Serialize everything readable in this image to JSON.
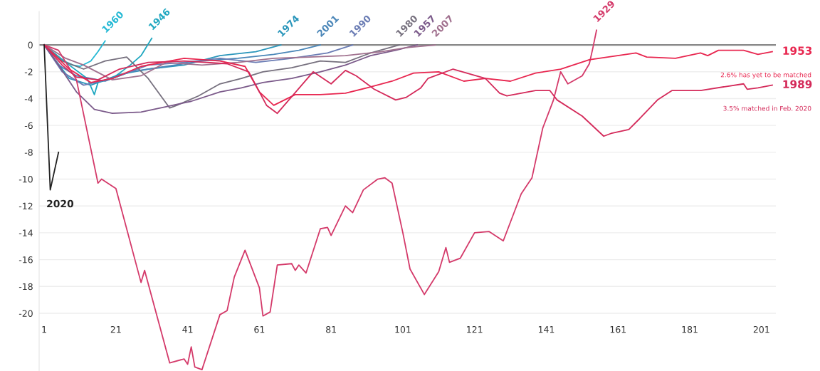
{
  "chart_data": {
    "type": "line",
    "xlim": [
      -0.4,
      205
    ],
    "ylim": [
      -24.3,
      2.5
    ],
    "xticks": [
      1,
      21,
      41,
      61,
      81,
      101,
      121,
      141,
      161,
      181,
      201
    ],
    "yticks": [
      0,
      -2,
      -4,
      -6,
      -8,
      -10,
      -12,
      -14,
      -16,
      -18,
      -20
    ],
    "grid": "y",
    "legend": false,
    "ref_lines": [
      {
        "axis": "y",
        "value": 0,
        "color": "#888888"
      }
    ],
    "annotations": [
      "2.6% has yet to be matched",
      "3.5% matched in Feb. 2020"
    ],
    "series": [
      {
        "name": "1960",
        "color": "#22b8d4",
        "x": [
          1,
          5,
          9,
          11,
          14,
          16,
          18
        ],
        "values": [
          0,
          -1.0,
          -1.5,
          -1.6,
          -1.2,
          -0.5,
          0.3
        ]
      },
      {
        "name": "1946",
        "color": "#1fa7c0",
        "x": [
          1,
          8,
          13,
          15,
          16,
          20,
          25,
          28,
          31
        ],
        "values": [
          0,
          -1.5,
          -2.5,
          -3.7,
          -2.8,
          -2.5,
          -1.5,
          -0.8,
          0.5
        ]
      },
      {
        "name": "1974",
        "color": "#2a96bb",
        "x": [
          1,
          8,
          14,
          22,
          30,
          40,
          50,
          60,
          67
        ],
        "values": [
          0,
          -2.5,
          -3.0,
          -2.2,
          -1.8,
          -1.5,
          -0.8,
          -0.5,
          0
        ]
      },
      {
        "name": "2001",
        "color": "#4a86b8",
        "x": [
          1,
          5,
          10,
          18,
          25,
          35,
          45,
          55,
          65,
          72,
          78
        ],
        "values": [
          0,
          -1.5,
          -2.3,
          -2.7,
          -2.0,
          -1.6,
          -1.2,
          -1.0,
          -0.7,
          -0.4,
          0
        ]
      },
      {
        "name": "1990",
        "color": "#6a7cb4",
        "x": [
          1,
          6,
          12,
          20,
          30,
          40,
          50,
          60,
          70,
          80,
          87
        ],
        "values": [
          0,
          -2.0,
          -3.0,
          -2.5,
          -1.5,
          -1.3,
          -1.0,
          -1.3,
          -1.0,
          -0.6,
          0
        ]
      },
      {
        "name": "1980",
        "color": "#76707e",
        "x": [
          1,
          6,
          12,
          18,
          24,
          30,
          36,
          38,
          44,
          50,
          56,
          62,
          70,
          78,
          85,
          92,
          100
        ],
        "values": [
          0,
          -1.2,
          -1.8,
          -1.2,
          -0.9,
          -2.5,
          -4.7,
          -4.5,
          -3.8,
          -2.9,
          -2.5,
          -2.0,
          -1.7,
          -1.2,
          -1.3,
          -0.6,
          0
        ]
      },
      {
        "name": "1957",
        "color": "#7b5a8a",
        "x": [
          1,
          5,
          10,
          15,
          20,
          28,
          35,
          42,
          50,
          56,
          62,
          70,
          78,
          85,
          92,
          99,
          105
        ],
        "values": [
          0,
          -1.5,
          -3.5,
          -4.8,
          -5.1,
          -5.0,
          -4.6,
          -4.2,
          -3.5,
          -3.2,
          -2.8,
          -2.5,
          -2.0,
          -1.5,
          -0.8,
          -0.4,
          0
        ]
      },
      {
        "name": "2007",
        "color": "#a0708e",
        "x": [
          1,
          7,
          12,
          20,
          28,
          35,
          45,
          55,
          65,
          75,
          85,
          95,
          102,
          110
        ],
        "values": [
          0,
          -1.0,
          -1.5,
          -2.6,
          -2.3,
          -1.3,
          -1.5,
          -1.3,
          -1.0,
          -0.9,
          -0.8,
          -0.5,
          -0.2,
          0
        ]
      },
      {
        "name": "1929",
        "color": "#d43a6a",
        "x": [
          1,
          5,
          10,
          16,
          17,
          21,
          28,
          29,
          36,
          40,
          41,
          42,
          43,
          45,
          50,
          52,
          54,
          57,
          61,
          62,
          64,
          66,
          70,
          71,
          72,
          74,
          78,
          80,
          81,
          85,
          87,
          90,
          94,
          96,
          98,
          101,
          103,
          107,
          111,
          113,
          114,
          117,
          121,
          125,
          129,
          134,
          137,
          140,
          143,
          145,
          147,
          151,
          153,
          154,
          155
        ],
        "values": [
          0,
          -0.4,
          -2.6,
          -10.3,
          -10.0,
          -10.7,
          -17.7,
          -16.8,
          -23.7,
          -23.4,
          -23.8,
          -22.5,
          -24.0,
          -24.2,
          -20.1,
          -19.8,
          -17.3,
          -15.3,
          -18.1,
          -20.2,
          -19.9,
          -16.4,
          -16.3,
          -16.8,
          -16.4,
          -17.0,
          -13.7,
          -13.6,
          -14.2,
          -12.0,
          -12.5,
          -10.8,
          -10.0,
          -9.9,
          -10.3,
          -14.0,
          -16.7,
          -18.6,
          -16.9,
          -15.1,
          -16.2,
          -15.9,
          -14.0,
          -13.9,
          -14.6,
          -11.1,
          -9.9,
          -6.2,
          -4.1,
          -2.0,
          -2.9,
          -2.3,
          -1.4,
          -0.2,
          1.1
        ]
      },
      {
        "name": "1953",
        "color": "#e8264f",
        "x": [
          1,
          8,
          14,
          20,
          28,
          40,
          50,
          57,
          61,
          65,
          71,
          78,
          85,
          91,
          98,
          104,
          111,
          118,
          124,
          131,
          138,
          145,
          153,
          166,
          169,
          177,
          184,
          186,
          189,
          196,
          200,
          204
        ],
        "values": [
          0,
          -1.8,
          -2.8,
          -2.5,
          -1.6,
          -1.0,
          -1.2,
          -1.6,
          -3.5,
          -4.5,
          -3.7,
          -3.7,
          -3.6,
          -3.2,
          -2.7,
          -2.1,
          -2.0,
          -2.7,
          -2.5,
          -2.7,
          -2.1,
          -1.8,
          -1.1,
          -0.6,
          -0.9,
          -1.0,
          -0.6,
          -0.8,
          -0.4,
          -0.4,
          -0.7,
          -0.5
        ]
      },
      {
        "name": "1989",
        "color": "#d42a5a",
        "x": [
          1,
          6,
          10,
          16,
          22,
          30,
          40,
          52,
          58,
          63,
          66,
          76,
          81,
          85,
          88,
          93,
          99,
          102,
          106,
          108,
          115,
          124,
          128,
          130,
          138,
          142,
          144,
          151,
          157,
          159,
          164,
          167,
          172,
          176,
          184,
          191,
          196,
          197,
          200,
          204
        ],
        "values": [
          0,
          -1.5,
          -2.4,
          -2.6,
          -1.8,
          -1.3,
          -1.2,
          -1.4,
          -2.0,
          -4.5,
          -5.1,
          -2.0,
          -2.9,
          -1.9,
          -2.3,
          -3.3,
          -4.1,
          -3.9,
          -3.2,
          -2.5,
          -1.8,
          -2.5,
          -3.6,
          -3.8,
          -3.4,
          -3.4,
          -4.1,
          -5.3,
          -6.8,
          -6.6,
          -6.3,
          -5.5,
          -4.1,
          -3.4,
          -3.4,
          -3.1,
          -2.9,
          -3.3,
          -3.2,
          -3.0
        ]
      },
      {
        "name": "2020",
        "color": "#222222",
        "x": [
          1,
          2.7,
          5
        ],
        "values": [
          0,
          -10.8,
          -8.0
        ]
      }
    ]
  }
}
